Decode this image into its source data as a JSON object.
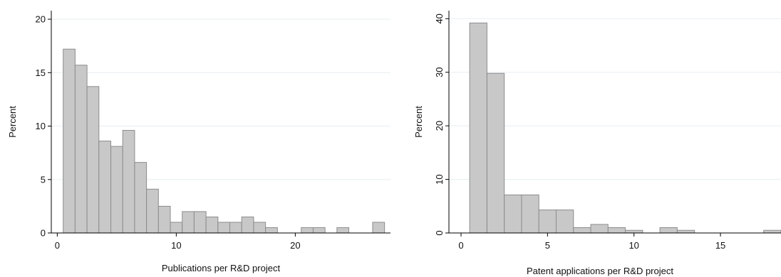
{
  "chart_data": [
    {
      "type": "bar",
      "xlabel": "Publications per R&D project",
      "ylabel": "Percent",
      "xlim": [
        -0.5,
        28
      ],
      "ylim": [
        0,
        20.8
      ],
      "xticks": [
        0,
        10,
        20
      ],
      "yticks": [
        0,
        5,
        10,
        15,
        20
      ],
      "bin_width": 1,
      "bins": [
        {
          "x0": 0.5,
          "x1": 1.5,
          "y": 17.2
        },
        {
          "x0": 1.5,
          "x1": 2.5,
          "y": 15.7
        },
        {
          "x0": 2.5,
          "x1": 3.5,
          "y": 13.7
        },
        {
          "x0": 3.5,
          "x1": 4.5,
          "y": 8.6
        },
        {
          "x0": 4.5,
          "x1": 5.5,
          "y": 8.1
        },
        {
          "x0": 5.5,
          "x1": 6.5,
          "y": 9.6
        },
        {
          "x0": 6.5,
          "x1": 7.5,
          "y": 6.6
        },
        {
          "x0": 7.5,
          "x1": 8.5,
          "y": 4.1
        },
        {
          "x0": 8.5,
          "x1": 9.5,
          "y": 2.5
        },
        {
          "x0": 9.5,
          "x1": 10.5,
          "y": 1.0
        },
        {
          "x0": 10.5,
          "x1": 11.5,
          "y": 2.0
        },
        {
          "x0": 11.5,
          "x1": 12.5,
          "y": 2.0
        },
        {
          "x0": 12.5,
          "x1": 13.5,
          "y": 1.5
        },
        {
          "x0": 13.5,
          "x1": 14.5,
          "y": 1.0
        },
        {
          "x0": 14.5,
          "x1": 15.5,
          "y": 1.0
        },
        {
          "x0": 15.5,
          "x1": 16.5,
          "y": 1.5
        },
        {
          "x0": 16.5,
          "x1": 17.5,
          "y": 1.0
        },
        {
          "x0": 17.5,
          "x1": 18.5,
          "y": 0.5
        },
        {
          "x0": 20.5,
          "x1": 21.5,
          "y": 0.5
        },
        {
          "x0": 21.5,
          "x1": 22.5,
          "y": 0.5
        },
        {
          "x0": 23.5,
          "x1": 24.5,
          "y": 0.5
        },
        {
          "x0": 26.5,
          "x1": 27.5,
          "y": 1.0
        }
      ],
      "grid": true
    },
    {
      "type": "bar",
      "xlabel": "Patent applications per R&D project",
      "ylabel": "Percent",
      "xlim": [
        -0.7,
        18.5
      ],
      "ylim": [
        0,
        41.5
      ],
      "xticks": [
        0,
        5,
        10,
        15
      ],
      "yticks": [
        0,
        10,
        20,
        30,
        40
      ],
      "bin_width": 1,
      "bins": [
        {
          "x0": 0.5,
          "x1": 1.5,
          "y": 39.2
        },
        {
          "x0": 1.5,
          "x1": 2.5,
          "y": 29.8
        },
        {
          "x0": 2.5,
          "x1": 3.5,
          "y": 7.1
        },
        {
          "x0": 3.5,
          "x1": 4.5,
          "y": 7.1
        },
        {
          "x0": 4.5,
          "x1": 5.5,
          "y": 4.3
        },
        {
          "x0": 5.5,
          "x1": 6.5,
          "y": 4.3
        },
        {
          "x0": 6.5,
          "x1": 7.5,
          "y": 1.0
        },
        {
          "x0": 7.5,
          "x1": 8.5,
          "y": 1.6
        },
        {
          "x0": 8.5,
          "x1": 9.5,
          "y": 1.0
        },
        {
          "x0": 9.5,
          "x1": 10.5,
          "y": 0.5
        },
        {
          "x0": 11.5,
          "x1": 12.5,
          "y": 1.0
        },
        {
          "x0": 12.5,
          "x1": 13.5,
          "y": 0.5
        },
        {
          "x0": 17.5,
          "x1": 18.5,
          "y": 0.5
        }
      ],
      "grid": true
    }
  ]
}
